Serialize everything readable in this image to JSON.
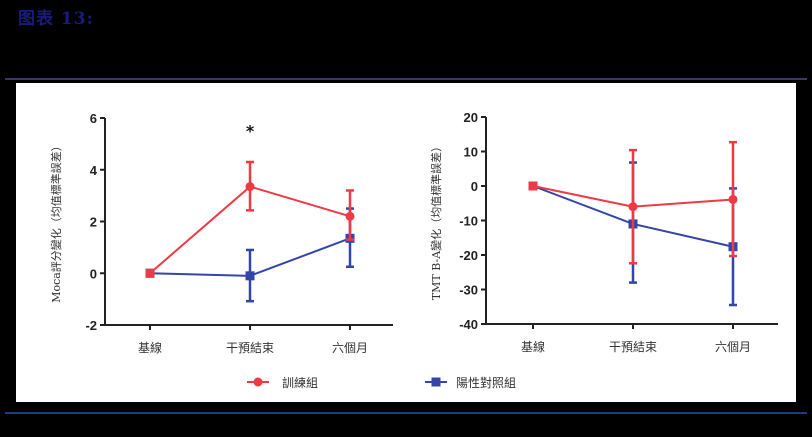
{
  "figure": {
    "title": "图表 13:"
  },
  "colors": {
    "training": "#ee3a44",
    "control": "#3344aa",
    "axis": "#222222"
  },
  "legend": [
    {
      "label": "訓練組",
      "color": "#ee3a44",
      "marker": "circle"
    },
    {
      "label": "陽性對照組",
      "color": "#3344aa",
      "marker": "square"
    }
  ],
  "chart_data": [
    {
      "type": "line",
      "title": "",
      "xlabel": "",
      "ylabel": "Moca評分變化（均值標準誤差）",
      "categories": [
        "基線",
        "干預結束",
        "六個月"
      ],
      "ylim": [
        -2,
        6
      ],
      "yticks": [
        -2,
        0,
        2,
        4,
        6
      ],
      "grid": false,
      "annotations": [
        {
          "text": "*",
          "category": "干預結束",
          "y": 5.6
        }
      ],
      "series": [
        {
          "name": "訓練組",
          "color": "#ee3a44",
          "values": [
            0,
            3.35,
            2.2
          ],
          "err_upper": [
            0,
            4.3,
            3.2
          ],
          "err_lower": [
            0,
            2.43,
            1.3
          ]
        },
        {
          "name": "陽性對照組",
          "color": "#3344aa",
          "values": [
            0,
            -0.1,
            1.35
          ],
          "err_upper": [
            0,
            0.9,
            2.5
          ],
          "err_lower": [
            0,
            -1.08,
            0.25
          ]
        }
      ]
    },
    {
      "type": "line",
      "title": "",
      "xlabel": "",
      "ylabel": "TMT B-A變化（均值標準誤差）",
      "categories": [
        "基線",
        "干預結束",
        "六個月"
      ],
      "ylim": [
        -40,
        20
      ],
      "yticks": [
        -40,
        -30,
        -20,
        -10,
        0,
        10,
        20
      ],
      "grid": false,
      "series": [
        {
          "name": "訓練組",
          "color": "#ee3a44",
          "values": [
            0,
            -6.0,
            -3.9
          ],
          "err_upper": [
            0,
            10.4,
            12.7
          ],
          "err_lower": [
            0,
            -22.4,
            -20.3
          ]
        },
        {
          "name": "陽性對照組",
          "color": "#3344aa",
          "values": [
            0,
            -11.0,
            -17.6
          ],
          "err_upper": [
            0,
            6.8,
            -0.7
          ],
          "err_lower": [
            0,
            -28.0,
            -34.5
          ]
        }
      ],
      "legend_position": "bottom"
    }
  ]
}
